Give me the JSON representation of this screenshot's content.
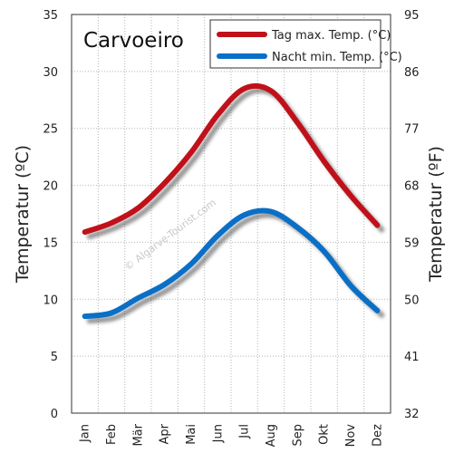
{
  "chart_data": {
    "type": "line",
    "title": "Carvoeiro",
    "watermark": "© Algarve-Tourist.com",
    "categories": [
      "Jan",
      "Feb",
      "Mär",
      "Apr",
      "Mai",
      "Jun",
      "Jul",
      "Aug",
      "Sep",
      "Okt",
      "Nov",
      "Dez"
    ],
    "series": [
      {
        "name": "Tag max. Temp. (°C)",
        "color": "#c0111a",
        "values": [
          15.9,
          16.7,
          18.0,
          20.2,
          22.9,
          26.2,
          28.5,
          28.3,
          25.5,
          22.1,
          19.1,
          16.5
        ]
      },
      {
        "name": "Nacht min. Temp. (°C)",
        "color": "#0a6fc6",
        "values": [
          8.5,
          8.8,
          10.1,
          11.3,
          13.1,
          15.6,
          17.4,
          17.7,
          16.3,
          14.2,
          11.2,
          9.0
        ]
      }
    ],
    "ylabel_left": "Temperatur (ºC)",
    "ylabel_right": "Temperatur (ºF)",
    "ylim_left": [
      0,
      35
    ],
    "yticks_left": [
      "0",
      "5",
      "10",
      "15",
      "20",
      "25",
      "30",
      "35"
    ],
    "yticks_right": [
      "32",
      "41",
      "50",
      "59",
      "68",
      "77",
      "86",
      "95"
    ],
    "grid": true,
    "legend_position": "top-right"
  }
}
